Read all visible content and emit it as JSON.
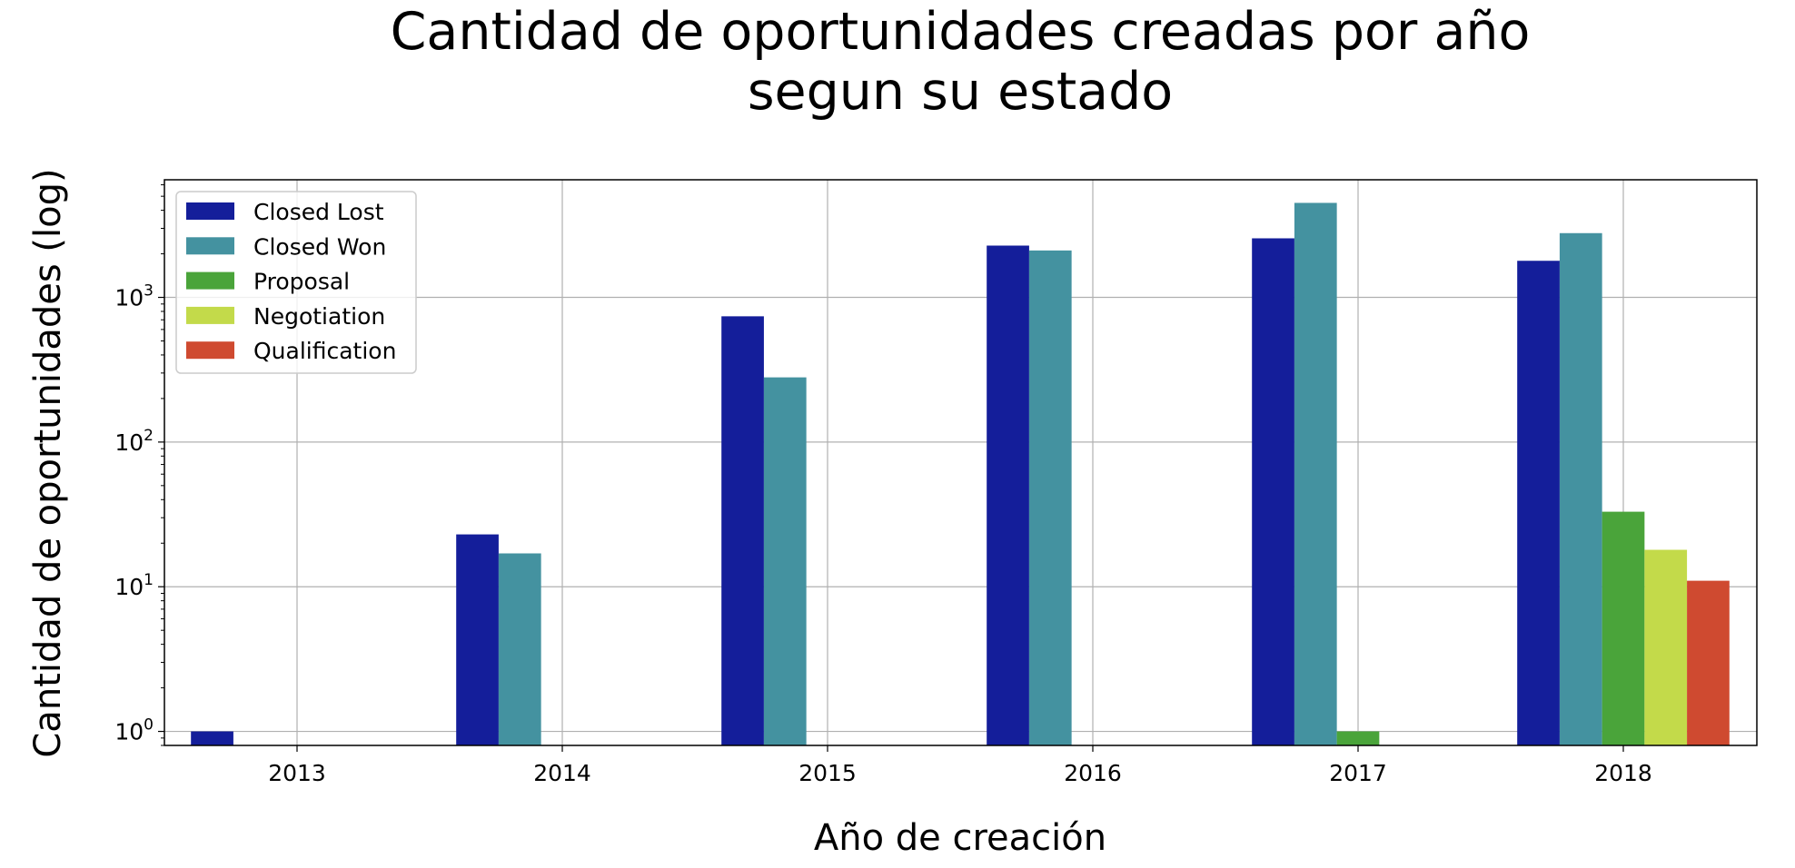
{
  "chart_data": {
    "type": "bar",
    "title": [
      "Cantidad de oportunidades creadas por año",
      "segun su estado"
    ],
    "xlabel": "Año de creación",
    "ylabel": "Cantidad de oportunidades (log)",
    "y_scale": "log",
    "ylim": [
      0.8,
      6500
    ],
    "y_ticks": [
      {
        "value": 1,
        "base": "10",
        "exp": "0"
      },
      {
        "value": 10,
        "base": "10",
        "exp": "1"
      },
      {
        "value": 100,
        "base": "10",
        "exp": "2"
      },
      {
        "value": 1000,
        "base": "10",
        "exp": "3"
      }
    ],
    "grid": true,
    "legend_position": "top-left",
    "categories": [
      "2013",
      "2014",
      "2015",
      "2016",
      "2017",
      "2018"
    ],
    "series": [
      {
        "name": "Closed Lost",
        "color": "#141e9a",
        "values": [
          1,
          23,
          740,
          2280,
          2560,
          1790
        ]
      },
      {
        "name": "Closed Won",
        "color": "#4492a0",
        "values": [
          null,
          17,
          280,
          2110,
          4500,
          2780
        ]
      },
      {
        "name": "Proposal",
        "color": "#4aa43a",
        "values": [
          null,
          null,
          null,
          null,
          1,
          33
        ]
      },
      {
        "name": "Negotiation",
        "color": "#c3da4a",
        "values": [
          null,
          null,
          null,
          null,
          null,
          18
        ]
      },
      {
        "name": "Qualification",
        "color": "#cf4a30",
        "values": [
          null,
          null,
          null,
          null,
          null,
          11
        ]
      }
    ]
  }
}
